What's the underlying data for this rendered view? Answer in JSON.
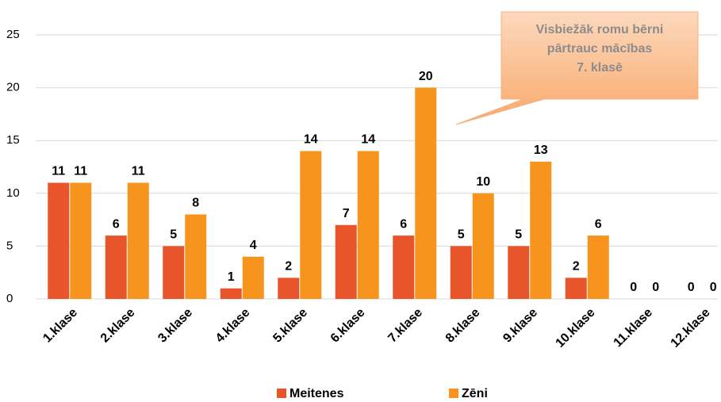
{
  "chart_data": {
    "type": "bar",
    "categories": [
      "1.klase",
      "2.klase",
      "3.klase",
      "4.klase",
      "5.klase",
      "6.klase",
      "7.klase",
      "8.klase",
      "9.klase",
      "10.klase",
      "11.klase",
      "12.klase"
    ],
    "series": [
      {
        "name": "Meitenes",
        "color": "#e8552a",
        "values": [
          11,
          6,
          5,
          1,
          2,
          7,
          6,
          5,
          5,
          2,
          0,
          0
        ]
      },
      {
        "name": "Zēni",
        "color": "#f7941d",
        "values": [
          11,
          11,
          8,
          4,
          14,
          14,
          20,
          10,
          13,
          6,
          0,
          0
        ]
      }
    ],
    "ylim": [
      0,
      25
    ],
    "yticks": [
      0,
      5,
      10,
      15,
      20,
      25
    ],
    "grid": true,
    "legend": "bottom",
    "annotation": [
      "Visbiežāk romu bērni",
      "pārtrauc mācības",
      "7. klasē"
    ]
  }
}
